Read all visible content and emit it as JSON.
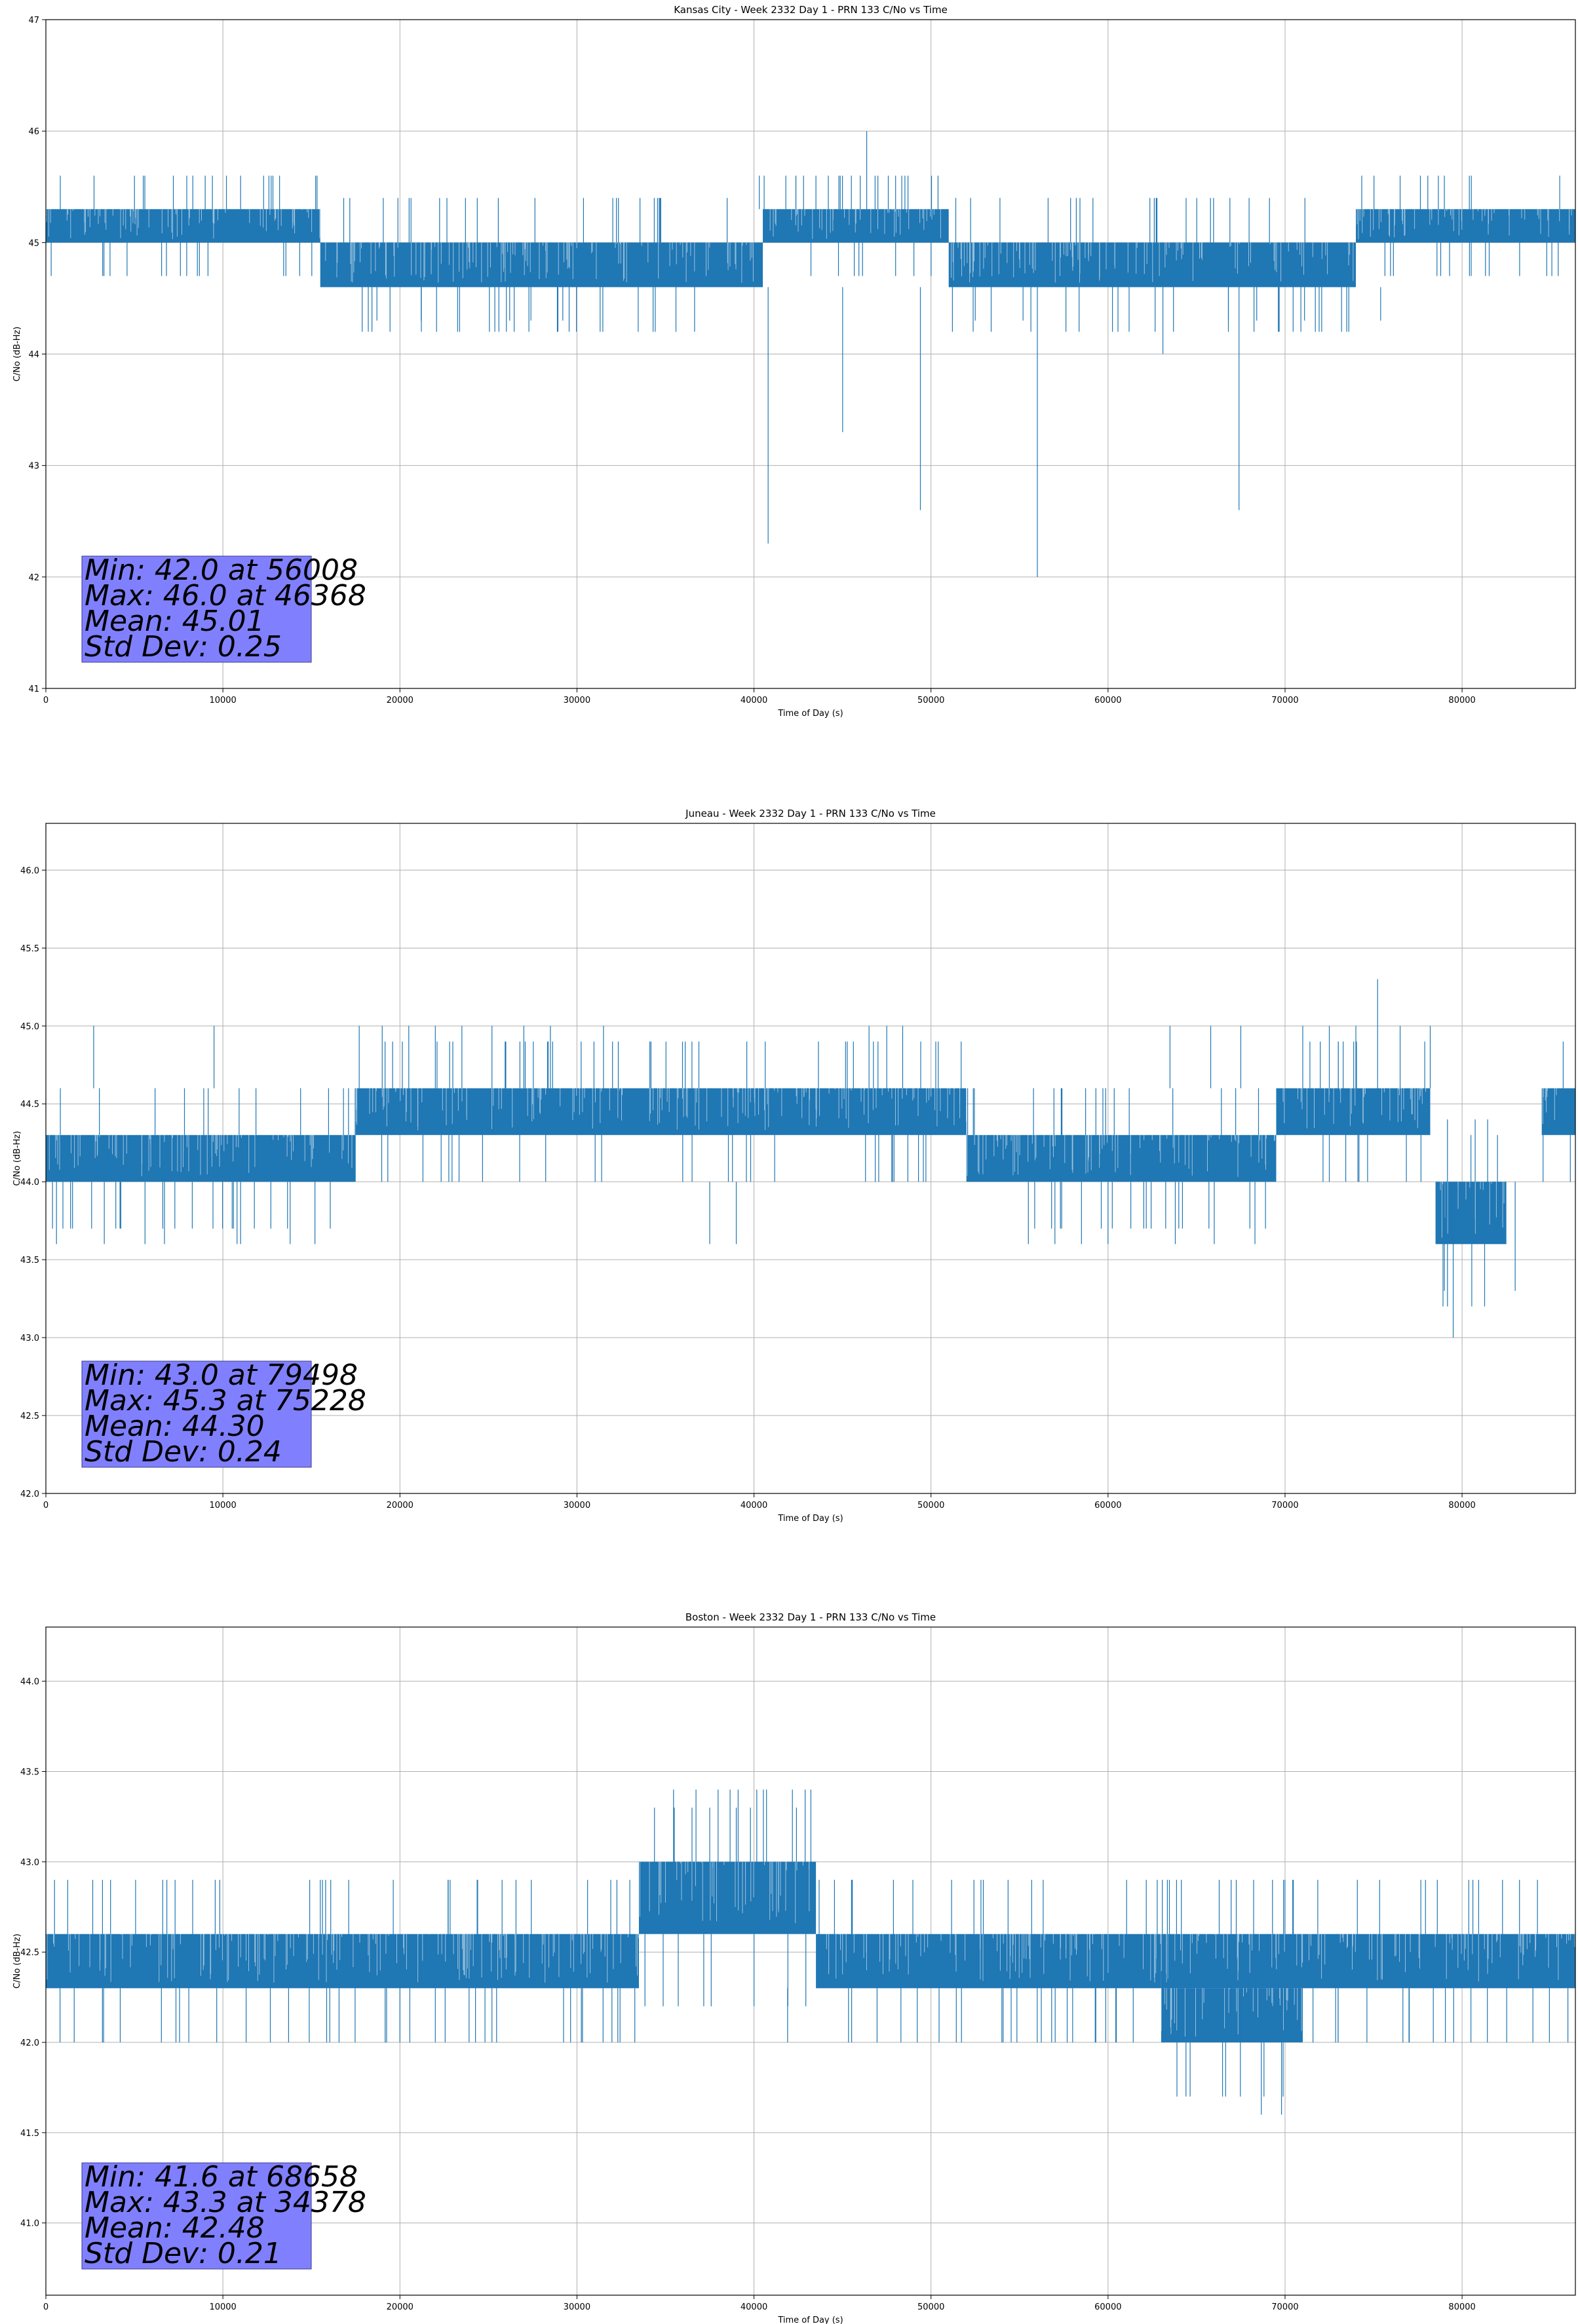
{
  "chart_data": [
    {
      "type": "line",
      "title": "Kansas City - Week 2332 Day 1 - PRN 133 C/No vs Time",
      "xlabel": "Time of Day (s)",
      "ylabel": "C/No (dB-Hz)",
      "xlim": [
        0,
        86400
      ],
      "ylim": [
        41,
        47
      ],
      "xticks": [
        "0",
        "10000",
        "20000",
        "30000",
        "40000",
        "50000",
        "60000",
        "70000",
        "80000"
      ],
      "yticks": [
        "41",
        "42",
        "43",
        "44",
        "45",
        "46",
        "47"
      ],
      "grid": true,
      "color": "#1f77b4",
      "stats": [
        "Min: 42.0 at 56008",
        "Max: 46.0 at 46368",
        "Mean: 45.01",
        "Std Dev: 0.25"
      ],
      "levels": [
        45.3,
        45.0,
        44.6
      ],
      "segments": [
        {
          "x0": 0,
          "x1": 15500,
          "lo": 45.0,
          "hi": 45.3
        },
        {
          "x0": 15500,
          "x1": 40500,
          "lo": 44.6,
          "hi": 45.0
        },
        {
          "x0": 40500,
          "x1": 51000,
          "lo": 45.0,
          "hi": 45.3
        },
        {
          "x0": 51000,
          "x1": 74000,
          "lo": 44.6,
          "hi": 45.0
        },
        {
          "x0": 74000,
          "x1": 86400,
          "lo": 45.0,
          "hi": 45.3
        }
      ],
      "spikes": [
        {
          "x": 7200,
          "y": 45.6
        },
        {
          "x": 8300,
          "y": 45.6
        },
        {
          "x": 9000,
          "y": 45.6
        },
        {
          "x": 10200,
          "y": 45.6
        },
        {
          "x": 11000,
          "y": 45.6
        },
        {
          "x": 12300,
          "y": 45.6
        },
        {
          "x": 12600,
          "y": 45.6
        },
        {
          "x": 40300,
          "y": 45.6
        },
        {
          "x": 41800,
          "y": 45.6
        },
        {
          "x": 42800,
          "y": 45.6
        },
        {
          "x": 43500,
          "y": 45.6
        },
        {
          "x": 44200,
          "y": 45.6
        },
        {
          "x": 45000,
          "y": 45.6
        },
        {
          "x": 46000,
          "y": 45.6
        },
        {
          "x": 46368,
          "y": 46.0
        },
        {
          "x": 47000,
          "y": 45.6
        },
        {
          "x": 48000,
          "y": 45.6
        },
        {
          "x": 48700,
          "y": 45.6
        },
        {
          "x": 76500,
          "y": 45.6
        },
        {
          "x": 800,
          "y": 44.6
        },
        {
          "x": 1400,
          "y": 44.6
        },
        {
          "x": 2100,
          "y": 44.6
        },
        {
          "x": 3700,
          "y": 44.6
        },
        {
          "x": 18700,
          "y": 44.3
        },
        {
          "x": 21200,
          "y": 44.3
        },
        {
          "x": 26200,
          "y": 44.3
        },
        {
          "x": 27400,
          "y": 44.3
        },
        {
          "x": 29200,
          "y": 44.3
        },
        {
          "x": 40800,
          "y": 42.3
        },
        {
          "x": 45008,
          "y": 43.3
        },
        {
          "x": 49400,
          "y": 42.6
        },
        {
          "x": 52500,
          "y": 44.3
        },
        {
          "x": 55200,
          "y": 44.3
        },
        {
          "x": 56008,
          "y": 42.0
        },
        {
          "x": 63100,
          "y": 44.0
        },
        {
          "x": 66800,
          "y": 44.3
        },
        {
          "x": 67400,
          "y": 42.6
        },
        {
          "x": 68400,
          "y": 44.3
        },
        {
          "x": 71100,
          "y": 44.3
        },
        {
          "x": 75400,
          "y": 44.3
        },
        {
          "x": 80000,
          "y": 44.6
        },
        {
          "x": 85400,
          "y": 44.6
        }
      ]
    },
    {
      "type": "line",
      "title": "Juneau - Week 2332 Day 1 - PRN 133 C/No vs Time",
      "xlabel": "Time of Day (s)",
      "ylabel": "C/No (dB-Hz)",
      "xlim": [
        0,
        86400
      ],
      "ylim": [
        42.0,
        46.3
      ],
      "xticks": [
        "0",
        "10000",
        "20000",
        "30000",
        "40000",
        "50000",
        "60000",
        "70000",
        "80000"
      ],
      "yticks": [
        "42.0",
        "42.5",
        "43.0",
        "43.5",
        "44.0",
        "44.5",
        "45.0",
        "45.5",
        "46.0"
      ],
      "grid": true,
      "color": "#1f77b4",
      "stats": [
        "Min: 43.0 at 79498",
        "Max: 45.3 at 75228",
        "Mean: 44.30",
        "Std Dev: 0.24"
      ],
      "levels": [
        44.6,
        44.3,
        44.0
      ],
      "segments": [
        {
          "x0": 0,
          "x1": 17500,
          "lo": 44.0,
          "hi": 44.3
        },
        {
          "x0": 17500,
          "x1": 52000,
          "lo": 44.3,
          "hi": 44.6
        },
        {
          "x0": 52000,
          "x1": 69500,
          "lo": 44.0,
          "hi": 44.3
        },
        {
          "x0": 69500,
          "x1": 78200,
          "lo": 44.3,
          "hi": 44.6
        },
        {
          "x0": 78500,
          "x1": 82500,
          "lo": 43.6,
          "hi": 44.0
        },
        {
          "x0": 84500,
          "x1": 86400,
          "lo": 44.3,
          "hi": 44.6
        }
      ],
      "spikes": [
        {
          "x": 2700,
          "y": 45.0
        },
        {
          "x": 9500,
          "y": 45.0
        },
        {
          "x": 17700,
          "y": 45.0
        },
        {
          "x": 19000,
          "y": 45.0
        },
        {
          "x": 20500,
          "y": 45.0
        },
        {
          "x": 22000,
          "y": 45.0
        },
        {
          "x": 23500,
          "y": 45.0
        },
        {
          "x": 25200,
          "y": 45.0
        },
        {
          "x": 27000,
          "y": 45.0
        },
        {
          "x": 28500,
          "y": 45.0
        },
        {
          "x": 31500,
          "y": 45.0
        },
        {
          "x": 46500,
          "y": 45.0
        },
        {
          "x": 47500,
          "y": 45.0
        },
        {
          "x": 48400,
          "y": 45.0
        },
        {
          "x": 63500,
          "y": 45.0
        },
        {
          "x": 65800,
          "y": 45.0
        },
        {
          "x": 67500,
          "y": 45.0
        },
        {
          "x": 71000,
          "y": 45.0
        },
        {
          "x": 72500,
          "y": 45.0
        },
        {
          "x": 74000,
          "y": 45.0
        },
        {
          "x": 75228,
          "y": 45.3
        },
        {
          "x": 76500,
          "y": 45.0
        },
        {
          "x": 78200,
          "y": 45.0
        },
        {
          "x": 600,
          "y": 43.6
        },
        {
          "x": 3300,
          "y": 43.6
        },
        {
          "x": 5600,
          "y": 43.6
        },
        {
          "x": 6700,
          "y": 43.6
        },
        {
          "x": 10800,
          "y": 43.6
        },
        {
          "x": 11000,
          "y": 43.6
        },
        {
          "x": 13800,
          "y": 43.6
        },
        {
          "x": 15200,
          "y": 43.6
        },
        {
          "x": 37500,
          "y": 43.6
        },
        {
          "x": 39000,
          "y": 43.6
        },
        {
          "x": 55500,
          "y": 43.6
        },
        {
          "x": 57000,
          "y": 43.6
        },
        {
          "x": 58500,
          "y": 43.6
        },
        {
          "x": 60000,
          "y": 43.6
        },
        {
          "x": 63800,
          "y": 43.6
        },
        {
          "x": 66000,
          "y": 43.6
        },
        {
          "x": 68300,
          "y": 43.6
        },
        {
          "x": 79000,
          "y": 43.3
        },
        {
          "x": 79498,
          "y": 43.0
        },
        {
          "x": 83000,
          "y": 43.3
        },
        {
          "x": 80500,
          "y": 44.3
        },
        {
          "x": 82000,
          "y": 44.3
        }
      ]
    },
    {
      "type": "line",
      "title": "Boston - Week 2332 Day 1 - PRN 133 C/No vs Time",
      "xlabel": "Time of Day (s)",
      "ylabel": "C/No (dB-Hz)",
      "xlim": [
        0,
        86400
      ],
      "ylim": [
        40.6,
        44.3
      ],
      "xticks": [
        "0",
        "10000",
        "20000",
        "30000",
        "40000",
        "50000",
        "60000",
        "70000",
        "80000"
      ],
      "yticks": [
        "41.0",
        "41.5",
        "42.0",
        "42.5",
        "43.0",
        "43.5",
        "44.0"
      ],
      "grid": true,
      "color": "#1f77b4",
      "stats": [
        "Min: 41.6 at 68658",
        "Max: 43.3 at 34378",
        "Mean: 42.48",
        "Std Dev: 0.21"
      ],
      "levels": [
        43.0,
        42.6,
        42.3
      ],
      "segments": [
        {
          "x0": 0,
          "x1": 33500,
          "lo": 42.3,
          "hi": 42.6
        },
        {
          "x0": 33500,
          "x1": 43500,
          "lo": 42.6,
          "hi": 43.0
        },
        {
          "x0": 43500,
          "x1": 63000,
          "lo": 42.3,
          "hi": 42.6
        },
        {
          "x0": 63000,
          "x1": 71000,
          "lo": 42.0,
          "hi": 42.3
        },
        {
          "x0": 63000,
          "x1": 86400,
          "lo": 42.3,
          "hi": 42.6
        }
      ],
      "spikes": [
        {
          "x": 3700,
          "y": 43.0
        },
        {
          "x": 6800,
          "y": 43.0
        },
        {
          "x": 8500,
          "y": 43.0
        },
        {
          "x": 10000,
          "y": 43.0
        },
        {
          "x": 11000,
          "y": 43.0
        },
        {
          "x": 12000,
          "y": 43.0
        },
        {
          "x": 13000,
          "y": 43.0
        },
        {
          "x": 14300,
          "y": 43.0
        },
        {
          "x": 16500,
          "y": 43.0
        },
        {
          "x": 18000,
          "y": 43.0
        },
        {
          "x": 20500,
          "y": 43.0
        },
        {
          "x": 22800,
          "y": 43.0
        },
        {
          "x": 25500,
          "y": 43.0
        },
        {
          "x": 27400,
          "y": 43.0
        },
        {
          "x": 30500,
          "y": 43.0
        },
        {
          "x": 32000,
          "y": 43.0
        },
        {
          "x": 34378,
          "y": 43.3
        },
        {
          "x": 35500,
          "y": 43.3
        },
        {
          "x": 36500,
          "y": 43.3
        },
        {
          "x": 37500,
          "y": 43.3
        },
        {
          "x": 39000,
          "y": 43.3
        },
        {
          "x": 39800,
          "y": 43.3
        },
        {
          "x": 42400,
          "y": 43.3
        },
        {
          "x": 45200,
          "y": 43.0
        },
        {
          "x": 57000,
          "y": 43.0
        },
        {
          "x": 58500,
          "y": 43.0
        },
        {
          "x": 60000,
          "y": 43.0
        },
        {
          "x": 61500,
          "y": 43.0
        },
        {
          "x": 63200,
          "y": 43.0
        },
        {
          "x": 65000,
          "y": 43.0
        },
        {
          "x": 78500,
          "y": 43.0
        },
        {
          "x": 80000,
          "y": 43.0
        },
        {
          "x": 85200,
          "y": 43.0
        },
        {
          "x": 800,
          "y": 42.0
        },
        {
          "x": 1600,
          "y": 42.0
        },
        {
          "x": 4200,
          "y": 42.0
        },
        {
          "x": 20000,
          "y": 42.0
        },
        {
          "x": 22000,
          "y": 42.0
        },
        {
          "x": 41900,
          "y": 42.0
        },
        {
          "x": 54000,
          "y": 42.0
        },
        {
          "x": 56000,
          "y": 42.0
        },
        {
          "x": 58000,
          "y": 42.0
        },
        {
          "x": 68658,
          "y": 41.6
        },
        {
          "x": 69800,
          "y": 41.6
        },
        {
          "x": 73000,
          "y": 42.0
        },
        {
          "x": 77000,
          "y": 42.0
        },
        {
          "x": 80500,
          "y": 42.0
        },
        {
          "x": 84000,
          "y": 42.0
        }
      ]
    }
  ]
}
